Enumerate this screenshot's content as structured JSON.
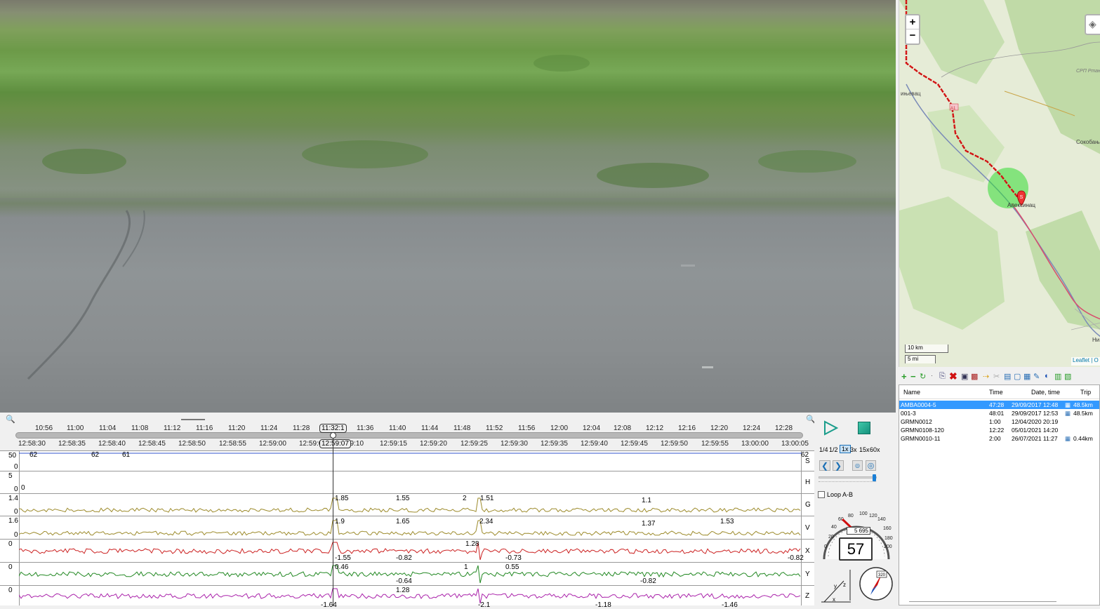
{
  "timeline": {
    "clock_ticks": [
      "10:56",
      "11:00",
      "11:04",
      "11:08",
      "11:12",
      "11:16",
      "11:20",
      "11:24",
      "11:28",
      "11:36",
      "11:40",
      "11:44",
      "11:48",
      "11:52",
      "11:56",
      "12:00",
      "12:04",
      "12:08",
      "12:12",
      "12:16",
      "12:20",
      "12:24",
      "12:28"
    ],
    "clock_cursor": "11:32:1",
    "time_ticks": [
      "12:58:30",
      "12:58:35",
      "12:58:40",
      "12:58:45",
      "12:58:50",
      "12:58:55",
      "12:59:00",
      "12:59:0",
      "59:10",
      "12:59:15",
      "12:59:20",
      "12:59:25",
      "12:59:30",
      "12:59:35",
      "12:59:40",
      "12:59:45",
      "12:59:50",
      "12:59:55",
      "13:00:00",
      "13:00:05"
    ],
    "time_cursor": "12:59:07",
    "graphs": [
      {
        "channel": "S",
        "max": "50",
        "min": "0",
        "peaks": [
          "62",
          "62",
          "61",
          "62"
        ]
      },
      {
        "channel": "H",
        "max": "5",
        "min": "0",
        "peaks": [
          "0"
        ]
      },
      {
        "channel": "G",
        "max": "1.4",
        "min": "0",
        "peaks": [
          "1.85",
          "1.55",
          "2",
          "1.51",
          "1.1"
        ]
      },
      {
        "channel": "V",
        "max": "1.6",
        "min": "0",
        "peaks": [
          "1.9",
          "1.65",
          "2.34",
          "1.37",
          "1.53"
        ]
      },
      {
        "channel": "X",
        "max": "0",
        "min": "",
        "peaks": [
          "1.28",
          "-1.55",
          "-0.82",
          "-0.73",
          "-0.82"
        ]
      },
      {
        "channel": "Y",
        "max": "0",
        "min": "",
        "peaks": [
          "0.46",
          "1",
          "0.55",
          "-0.64",
          "-0.82"
        ]
      },
      {
        "channel": "Z",
        "max": "0",
        "min": "",
        "peaks": [
          "1.28",
          "-1.64",
          "-2.1",
          "-1.18",
          "-1.46"
        ]
      }
    ],
    "colors": {
      "S": "#3355cc",
      "G": "#9c8a2a",
      "V": "#9c8a2a",
      "X": "#cc2222",
      "Y": "#228822",
      "Z": "#aa22aa"
    }
  },
  "controls": {
    "play_icon": "play-icon",
    "stop_icon": "stop-icon",
    "speeds": [
      "1/4",
      "1/2",
      "1x",
      "3x",
      "15x",
      "60x"
    ],
    "selected_speed": "1x",
    "loop_label": "Loop A-B",
    "odometer": "5 695",
    "speed_value": "57",
    "gauge_ticks": [
      "20",
      "40",
      "60",
      "80",
      "100",
      "120",
      "140",
      "160",
      "180",
      "200",
      "0"
    ],
    "compass_label": "320"
  },
  "map": {
    "zoom_in": "+",
    "zoom_out": "−",
    "scale_km": "10 km",
    "scale_mi": "5 mi",
    "attribution": "Leaflet | O",
    "places": [
      "СРП Ртањ",
      "ињевац",
      "Сокобањ",
      "Алексинац",
      "Ни"
    ],
    "road_badge": "A1",
    "marker_label": "S"
  },
  "list": {
    "columns": [
      "Name",
      "Time",
      "Date, time",
      "Trip"
    ],
    "rows": [
      {
        "name": "AMBA0004-5",
        "time": "47:28",
        "date": "29/09/2017 12:48",
        "trip": "48.5km",
        "selected": true
      },
      {
        "name": "001-3",
        "time": "48:01",
        "date": "29/09/2017 12:53",
        "trip": "48.5km",
        "selected": false
      },
      {
        "name": "GRMN0012",
        "time": "1:00",
        "date": "12/04/2020 20:19",
        "trip": "",
        "selected": false
      },
      {
        "name": "GRMN0108-120",
        "time": "12:22",
        "date": "05/01/2021 14:20",
        "trip": "",
        "selected": false
      },
      {
        "name": "GRMN0010-11",
        "time": "2:00",
        "date": "26/07/2021 11:27",
        "trip": "0.44km",
        "selected": false
      }
    ]
  }
}
